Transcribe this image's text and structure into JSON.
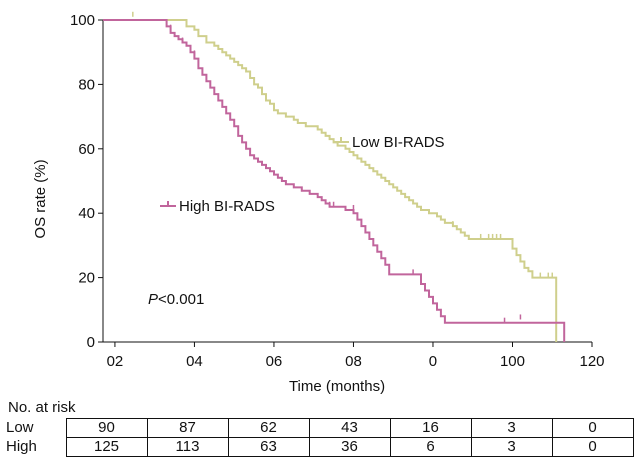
{
  "chart_data": {
    "type": "line",
    "chart_kind": "kaplan-meier survival curve",
    "title": "",
    "xlabel": "Time (months)",
    "ylabel": "OS rate (%)",
    "x_tick_labels": [
      "02",
      "04",
      "06",
      "08",
      "0",
      "100",
      "120"
    ],
    "x_tick_values": [
      20,
      40,
      60,
      80,
      100,
      120,
      140
    ],
    "ylim": [
      0,
      100
    ],
    "y_ticks": [
      0,
      20,
      40,
      60,
      80,
      100
    ],
    "xlim": [
      17,
      140
    ],
    "grid": false,
    "annotation": {
      "italic": "P",
      "rest": "<0.001"
    },
    "series": [
      {
        "name": "Low BI-RADS",
        "color": "#cfcf8c",
        "points": [
          [
            17,
            100
          ],
          [
            37,
            100
          ],
          [
            38,
            98
          ],
          [
            40,
            97
          ],
          [
            41,
            95
          ],
          [
            43,
            93
          ],
          [
            45,
            92
          ],
          [
            46,
            91
          ],
          [
            47,
            90
          ],
          [
            48,
            89
          ],
          [
            49,
            88
          ],
          [
            50,
            87
          ],
          [
            51,
            86
          ],
          [
            52,
            85
          ],
          [
            53,
            84
          ],
          [
            54,
            82
          ],
          [
            55,
            80
          ],
          [
            56,
            79
          ],
          [
            57,
            77
          ],
          [
            58,
            75
          ],
          [
            59,
            74
          ],
          [
            60,
            72
          ],
          [
            61,
            71
          ],
          [
            63,
            70
          ],
          [
            65,
            69
          ],
          [
            66,
            68
          ],
          [
            68,
            67
          ],
          [
            70,
            67
          ],
          [
            71,
            66
          ],
          [
            72,
            65
          ],
          [
            73,
            64
          ],
          [
            74,
            63
          ],
          [
            75,
            62
          ],
          [
            76,
            61
          ],
          [
            78,
            60
          ],
          [
            79,
            59
          ],
          [
            80,
            58
          ],
          [
            81,
            57
          ],
          [
            82,
            56
          ],
          [
            83,
            55
          ],
          [
            84,
            54
          ],
          [
            85,
            53
          ],
          [
            86,
            52
          ],
          [
            87,
            51
          ],
          [
            88,
            50
          ],
          [
            89,
            49
          ],
          [
            90,
            48
          ],
          [
            91,
            47
          ],
          [
            92,
            46
          ],
          [
            93,
            45
          ],
          [
            94,
            44
          ],
          [
            95,
            43
          ],
          [
            96,
            42
          ],
          [
            97,
            41
          ],
          [
            99,
            40
          ],
          [
            101,
            39
          ],
          [
            102,
            38
          ],
          [
            103,
            37
          ],
          [
            105,
            36
          ],
          [
            106,
            35
          ],
          [
            107,
            34
          ],
          [
            108,
            33
          ],
          [
            109,
            32
          ],
          [
            119,
            32
          ],
          [
            120,
            29
          ],
          [
            121,
            27
          ],
          [
            122,
            25
          ],
          [
            123,
            23
          ],
          [
            124,
            22
          ],
          [
            125,
            20
          ],
          [
            131,
            20
          ],
          [
            131,
            0
          ]
        ],
        "censor_marks": [
          [
            24.5,
            101
          ],
          [
            105,
            36
          ],
          [
            112,
            32
          ],
          [
            114,
            32
          ],
          [
            115,
            32
          ],
          [
            116,
            32
          ],
          [
            117,
            32
          ],
          [
            127,
            20
          ],
          [
            129,
            20
          ],
          [
            130,
            20
          ]
        ],
        "legend_label": "Low BI-RADS"
      },
      {
        "name": "High BI-RADS",
        "color": "#c1659c",
        "points": [
          [
            17,
            100
          ],
          [
            32,
            100
          ],
          [
            33,
            98
          ],
          [
            34,
            96
          ],
          [
            35,
            95
          ],
          [
            36,
            94
          ],
          [
            37,
            93
          ],
          [
            38,
            92
          ],
          [
            39,
            90
          ],
          [
            40,
            88
          ],
          [
            41,
            85
          ],
          [
            42,
            83
          ],
          [
            43,
            81
          ],
          [
            44,
            79
          ],
          [
            45,
            77
          ],
          [
            46,
            75
          ],
          [
            47,
            73
          ],
          [
            48,
            71
          ],
          [
            49,
            69
          ],
          [
            50,
            67
          ],
          [
            51,
            64
          ],
          [
            52,
            62
          ],
          [
            53,
            60
          ],
          [
            54,
            58
          ],
          [
            55,
            57
          ],
          [
            56,
            56
          ],
          [
            57,
            55
          ],
          [
            58,
            54
          ],
          [
            59,
            53
          ],
          [
            60,
            52
          ],
          [
            61,
            51
          ],
          [
            62,
            50
          ],
          [
            63,
            49
          ],
          [
            65,
            48
          ],
          [
            67,
            47
          ],
          [
            69,
            46
          ],
          [
            71,
            45
          ],
          [
            72,
            44
          ],
          [
            73,
            43
          ],
          [
            74,
            42
          ],
          [
            77,
            42
          ],
          [
            78,
            41
          ],
          [
            80,
            40
          ],
          [
            81,
            38
          ],
          [
            82,
            36
          ],
          [
            83,
            34
          ],
          [
            84,
            32
          ],
          [
            85,
            30
          ],
          [
            86,
            28
          ],
          [
            87,
            26
          ],
          [
            88,
            24
          ],
          [
            89,
            21
          ],
          [
            96,
            21
          ],
          [
            97,
            18
          ],
          [
            98,
            16
          ],
          [
            99,
            14
          ],
          [
            100,
            12
          ],
          [
            101,
            10
          ],
          [
            102,
            8
          ],
          [
            103,
            6
          ],
          [
            117,
            6
          ],
          [
            118,
            6
          ],
          [
            133,
            6
          ],
          [
            133,
            0
          ]
        ],
        "censor_marks": [
          [
            34,
            97
          ],
          [
            37,
            93
          ],
          [
            40,
            89
          ],
          [
            74,
            42
          ],
          [
            75,
            42
          ],
          [
            80,
            41
          ],
          [
            95,
            21
          ],
          [
            118,
            6
          ],
          [
            122,
            7
          ]
        ],
        "legend_label": "High BI-RADS"
      }
    ]
  },
  "risk_table": {
    "title": "No. at risk",
    "rows": [
      {
        "label": "Low",
        "values": [
          "90",
          "87",
          "62",
          "43",
          "16",
          "3",
          "0"
        ]
      },
      {
        "label": "High",
        "values": [
          "125",
          "113",
          "63",
          "36",
          "6",
          "3",
          "0"
        ]
      }
    ]
  }
}
